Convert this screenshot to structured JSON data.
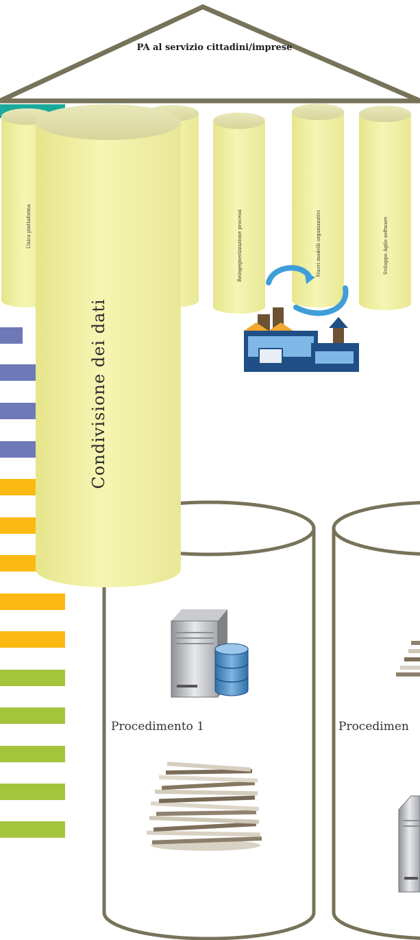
{
  "roof": {
    "title": "PA al servizio cittadini/imprese"
  },
  "pillars": [
    {
      "label": "Unica piattaforma"
    },
    {
      "label": "Reingegnerizzazione processi"
    },
    {
      "label": "Nuovi modelli organizzativi"
    },
    {
      "label": "Sviluppo Agile software"
    }
  ],
  "main_cylinder": {
    "label": "Condivisione dei dati"
  },
  "repositories": [
    {
      "label": "Procedimento 1"
    },
    {
      "label": "Procedimen"
    }
  ],
  "colors": {
    "roof_stroke": "#77735a",
    "pillar_fill": "#f3f2a4",
    "cylinder_stroke": "#77735a",
    "bar_blue": "#6e79b8",
    "bar_orange": "#fdb913",
    "bar_green": "#a4c43c",
    "bar_teal": "#1aa99a"
  }
}
